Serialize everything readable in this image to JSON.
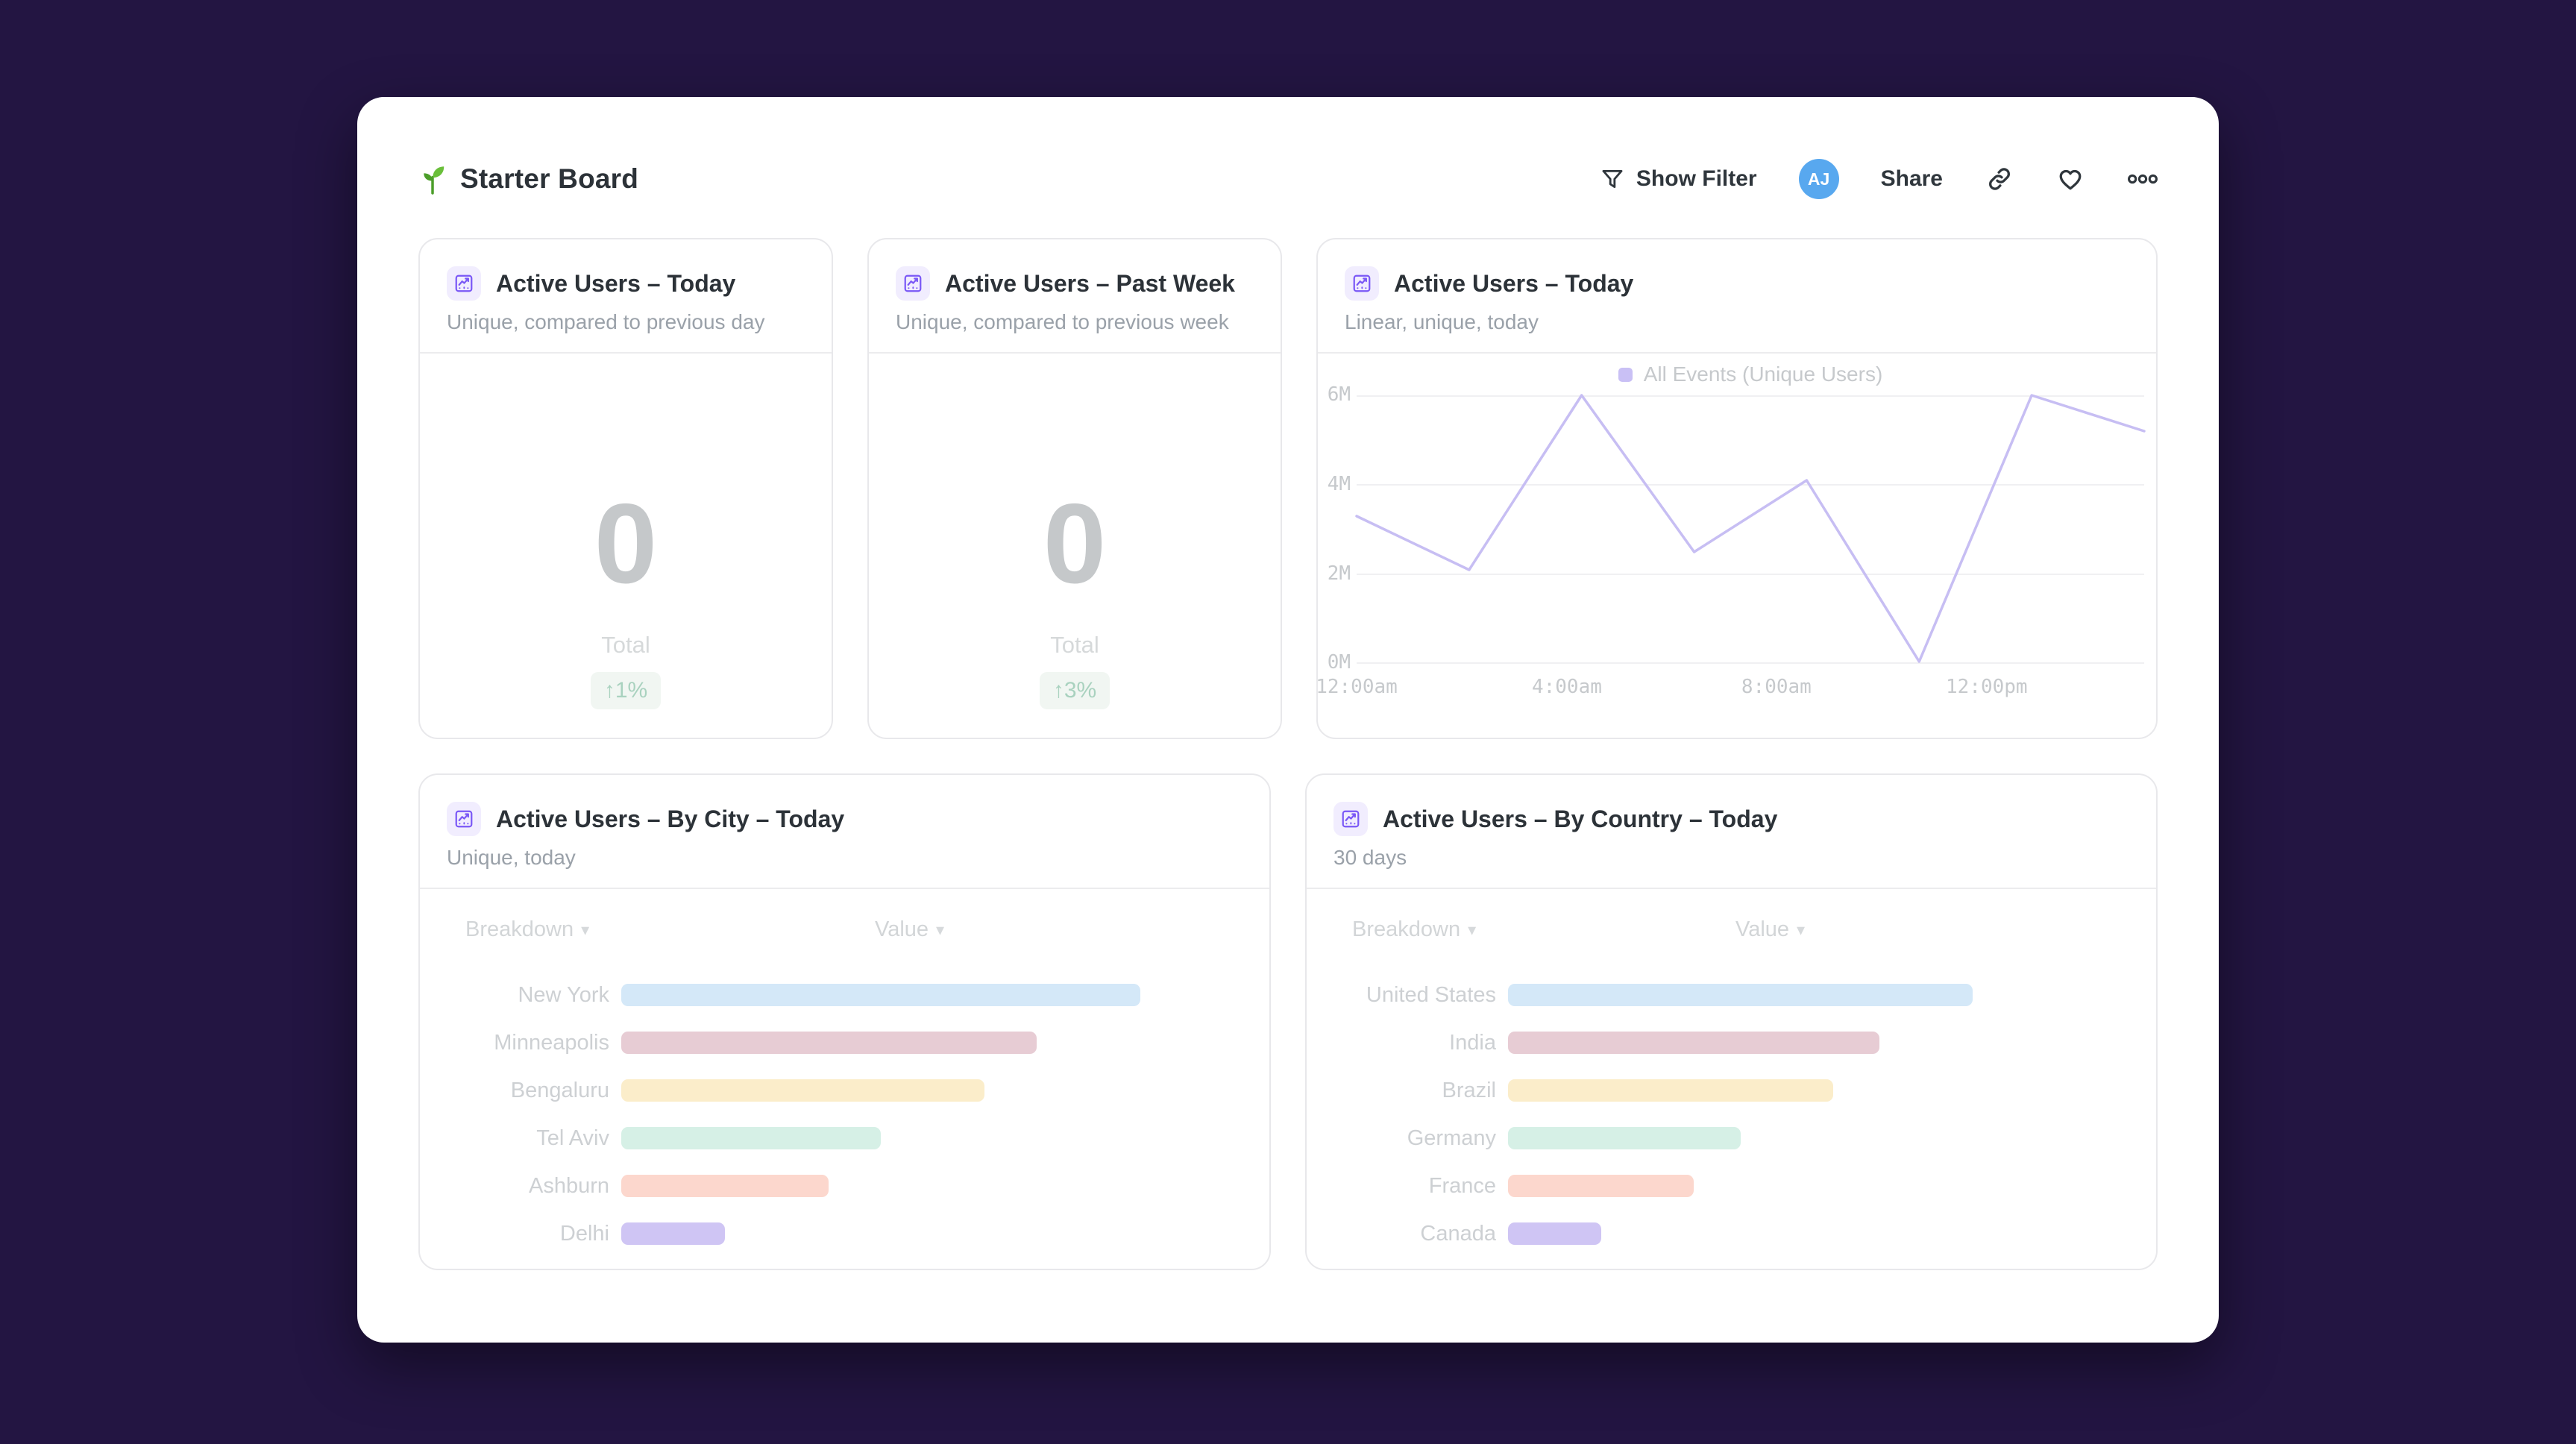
{
  "colors": {
    "page_bg": "#231542",
    "panel_bg": "#ffffff",
    "accent_purple": "#7a58f6",
    "avatar_blue": "#58a8ef",
    "badge_bg": "#f1f6f2",
    "badge_text": "#a9d2bf",
    "line_series": "#c7bef3"
  },
  "header": {
    "board_title": "Starter Board",
    "show_filter_label": "Show Filter",
    "share_label": "Share",
    "avatar_initials": "AJ"
  },
  "cards": {
    "today": {
      "title": "Active Users – Today",
      "subtitle": "Unique, compared to previous day",
      "value": "0",
      "value_label": "Total",
      "delta": "↑1%"
    },
    "past_week": {
      "title": "Active Users – Past Week",
      "subtitle": "Unique, compared to previous week",
      "value": "0",
      "value_label": "Total",
      "delta": "↑3%"
    },
    "line": {
      "title": "Active Users – Today",
      "subtitle": "Linear, unique, today"
    },
    "by_city": {
      "title": "Active Users – By City – Today",
      "subtitle": "Unique, today",
      "col_breakdown": "Breakdown",
      "col_value": "Value",
      "caret": "▾"
    },
    "by_country": {
      "title": "Active Users – By Country – Today",
      "subtitle": "30 days",
      "col_breakdown": "Breakdown",
      "col_value": "Value",
      "caret": "▾"
    }
  },
  "chart_data": [
    {
      "type": "line",
      "title": "Active Users – Today",
      "series": [
        {
          "name": "All Events (Unique Users)",
          "values_millions": [
            3.3,
            2.1,
            6.0,
            2.5,
            4.1,
            0.05,
            6.0,
            5.2
          ]
        }
      ],
      "x_ticks": [
        "12:00am",
        "4:00am",
        "8:00am",
        "12:00pm"
      ],
      "x_tick_positions_pct": [
        0,
        26.7,
        53.3,
        80
      ],
      "y_ticks": [
        "6M",
        "4M",
        "2M",
        "0M"
      ],
      "ylim_millions": [
        0,
        6
      ],
      "grid": true,
      "legend_position": "top-center",
      "line_color": "#c7bef3"
    },
    {
      "type": "bar",
      "orientation": "horizontal",
      "title": "Active Users – By City – Today",
      "categories": [
        "New York",
        "Minneapolis",
        "Bengaluru",
        "Tel Aviv",
        "Ashburn",
        "Delhi"
      ],
      "values_relative_pct": [
        100,
        80,
        70,
        50,
        40,
        20
      ],
      "colors": [
        "#d4e8f8",
        "#e7ccd4",
        "#fbedca",
        "#d6f0e6",
        "#fcd7cd",
        "#cfc5f4"
      ]
    },
    {
      "type": "bar",
      "orientation": "horizontal",
      "title": "Active Users – By Country – Today",
      "categories": [
        "United States",
        "India",
        "Brazil",
        "Germany",
        "France",
        "Canada"
      ],
      "values_relative_pct": [
        100,
        80,
        70,
        50,
        40,
        20
      ],
      "colors": [
        "#d4e8f8",
        "#e7ccd4",
        "#fbedca",
        "#d6f0e6",
        "#fcd7cd",
        "#cfc5f4"
      ]
    }
  ]
}
